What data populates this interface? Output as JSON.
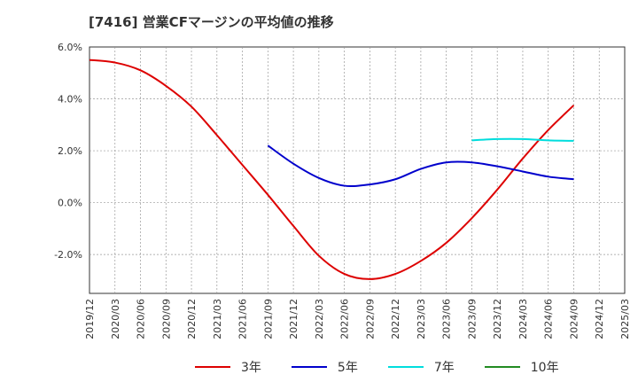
{
  "chart_data": {
    "type": "line",
    "title": "[7416]  営業CFマージンの平均値の推移",
    "xlabel": "",
    "ylabel": "",
    "x_ticks": [
      "2019/12",
      "2020/03",
      "2020/06",
      "2020/09",
      "2020/12",
      "2021/03",
      "2021/06",
      "2021/09",
      "2021/12",
      "2022/03",
      "2022/06",
      "2022/09",
      "2022/12",
      "2023/03",
      "2023/06",
      "2023/09",
      "2023/12",
      "2024/03",
      "2024/06",
      "2024/09",
      "2024/12",
      "2025/03"
    ],
    "y_ticks": [
      "6.0%",
      "4.0%",
      "2.0%",
      "0.0%",
      "-2.0%"
    ],
    "ylim": [
      -3.5,
      6.0
    ],
    "grid": true,
    "legend_position": "bottom",
    "series": [
      {
        "name": "3年",
        "color": "#dd0000",
        "x": [
          "2019/12",
          "2020/03",
          "2020/06",
          "2020/09",
          "2020/12",
          "2021/03",
          "2021/06",
          "2021/09",
          "2021/12",
          "2022/03",
          "2022/06",
          "2022/09",
          "2022/12",
          "2023/03",
          "2023/06",
          "2023/09",
          "2023/12",
          "2024/03",
          "2024/06",
          "2024/09"
        ],
        "values": [
          5.5,
          5.4,
          5.1,
          4.5,
          3.7,
          2.6,
          1.45,
          0.3,
          -0.9,
          -2.05,
          -2.75,
          -2.95,
          -2.75,
          -2.25,
          -1.55,
          -0.6,
          0.5,
          1.7,
          2.8,
          3.75
        ]
      },
      {
        "name": "5年",
        "color": "#0000cc",
        "x": [
          "2021/09",
          "2021/12",
          "2022/03",
          "2022/06",
          "2022/09",
          "2022/12",
          "2023/03",
          "2023/06",
          "2023/09",
          "2023/12",
          "2024/03",
          "2024/06",
          "2024/09"
        ],
        "values": [
          2.2,
          1.5,
          0.95,
          0.65,
          0.7,
          0.9,
          1.3,
          1.55,
          1.55,
          1.4,
          1.2,
          1.0,
          0.9
        ]
      },
      {
        "name": "7年",
        "color": "#00dddd",
        "x": [
          "2023/09",
          "2023/12",
          "2024/03",
          "2024/06",
          "2024/09"
        ],
        "values": [
          2.4,
          2.45,
          2.45,
          2.4,
          2.38
        ]
      },
      {
        "name": "10年",
        "color": "#228b22",
        "x": [],
        "values": []
      }
    ]
  }
}
